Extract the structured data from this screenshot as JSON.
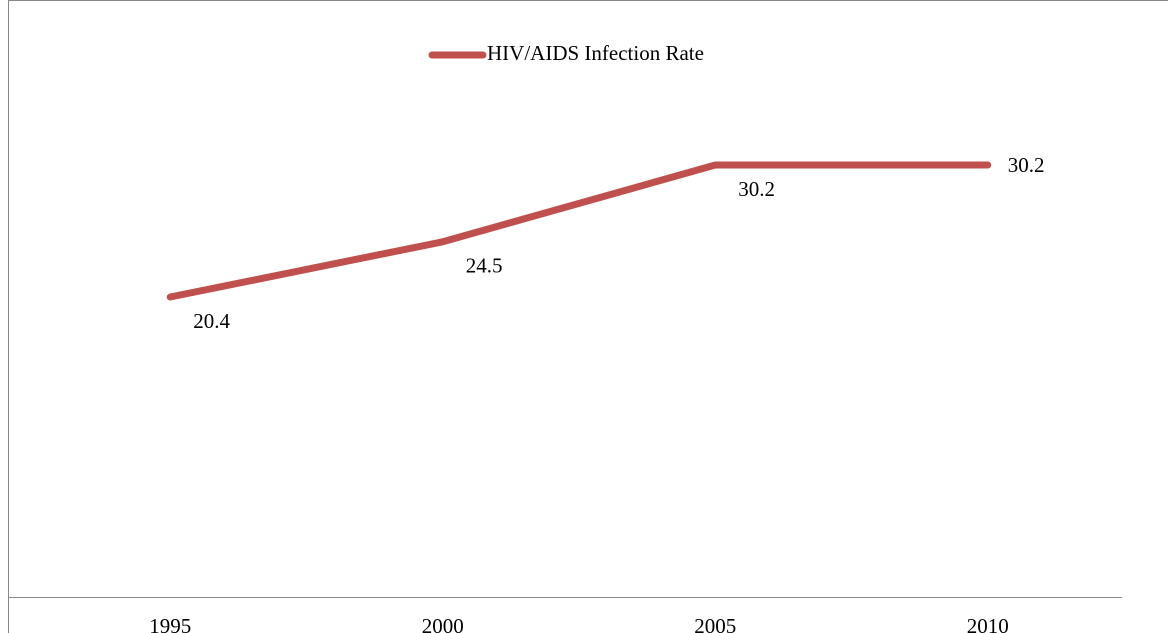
{
  "chart_data": {
    "type": "line",
    "categories": [
      "1995",
      "2000",
      "2005",
      "2010"
    ],
    "series": [
      {
        "name": "HIV/AIDS Infection Rate",
        "color": "#c0504d",
        "values": [
          20.4,
          24.5,
          30.2,
          30.2
        ]
      }
    ],
    "legend": "top"
  }
}
